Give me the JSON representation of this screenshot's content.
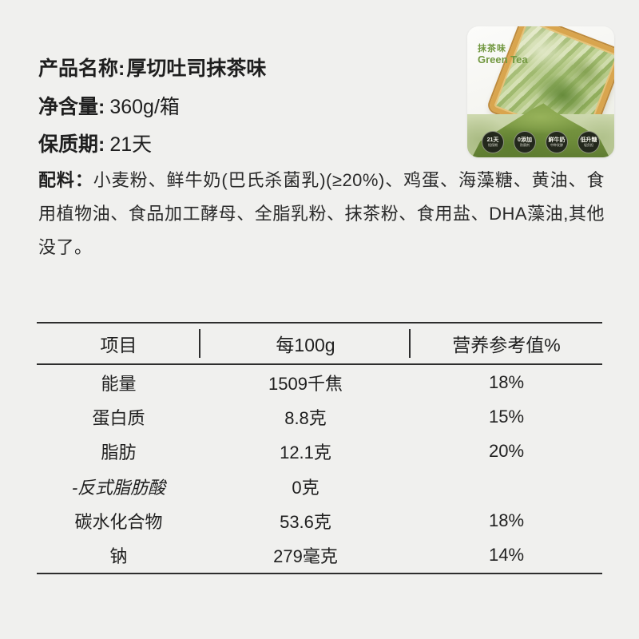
{
  "info": {
    "fields": [
      {
        "label": "产品名称:",
        "value": "厚切吐司抹茶味"
      },
      {
        "label": "净含量:",
        "value": "360g/箱"
      },
      {
        "label": "保质期:",
        "value": "21天"
      }
    ],
    "ingredients": {
      "label": "配料：",
      "text": "小麦粉、鲜牛奶(巴氏杀菌乳)(≥20%)、鸡蛋、海藻糖、黄油、食用植物油、食品加工酵母、全脂乳粉、抹茶粉、食用盐、DHA藻油,其他没了。"
    }
  },
  "photo": {
    "flavor_cn": "抹茶味",
    "flavor_en": "Green Tea",
    "badges": [
      {
        "top": "21天",
        "bottom": "短保期"
      },
      {
        "top": "0添加",
        "bottom": "防腐剂"
      },
      {
        "top": "鲜牛奶",
        "bottom": "中种发酵"
      },
      {
        "top": "低升糖",
        "bottom": "轻负担"
      }
    ],
    "colors": {
      "accent_green": "#71973f",
      "crust_gold": "#d9a54e",
      "matcha_powder": "#7b9a42",
      "fabric_sage": "#c2cfa0",
      "page_bg": "#f0f0ee"
    }
  },
  "nutrition": {
    "headers": [
      "项目",
      "每100g",
      "营养参考值%"
    ],
    "rows": [
      {
        "item": "能量",
        "amount": "1509千焦",
        "nrv": "18%"
      },
      {
        "item": "蛋白质",
        "amount": "8.8克",
        "nrv": "15%"
      },
      {
        "item": "脂肪",
        "amount": "12.1克",
        "nrv": "20%"
      },
      {
        "item": "-反式脂肪酸",
        "amount": "0克",
        "nrv": ""
      },
      {
        "item": "碳水化合物",
        "amount": "53.6克",
        "nrv": "18%"
      },
      {
        "item": "钠",
        "amount": "279毫克",
        "nrv": "14%"
      }
    ]
  }
}
